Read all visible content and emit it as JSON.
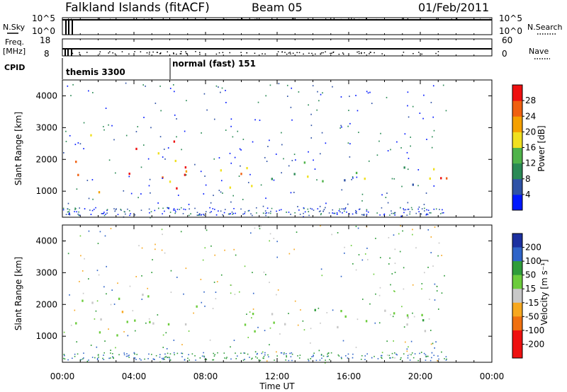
{
  "header": {
    "station": "Falkland Islands (fitACF)",
    "beam": "Beam 05",
    "date": "01/Feb/2011"
  },
  "noise_panel": {
    "left_label": "N.Sky",
    "right_label": "N.Search",
    "left_ticks": [
      "10^5",
      "10^0"
    ],
    "right_ticks": [
      "10^5",
      "10^0"
    ]
  },
  "freq_panel": {
    "left_label_1": "Freq.",
    "left_label_2": "[MHz]",
    "right_label": "Nave",
    "left_ticks": [
      "18",
      "8"
    ],
    "right_ticks": [
      "60",
      "0"
    ]
  },
  "cpid_panel": {
    "label": "CPID",
    "modes": [
      "themis 3300",
      "normal (fast) 151"
    ]
  },
  "power_panel": {
    "ylabel": "Slant Range [km]",
    "yticks": [
      "1000",
      "2000",
      "3000",
      "4000"
    ],
    "colorbar_label": "Power [dB]",
    "colorbar_ticks": [
      "4",
      "8",
      "12",
      "16",
      "20",
      "24",
      "28"
    ],
    "colors": [
      "#0018ff",
      "#2f52a6",
      "#2a8a55",
      "#4fb34a",
      "#f0e020",
      "#f5a000",
      "#f06010",
      "#ee1010"
    ]
  },
  "velocity_panel": {
    "ylabel": "Slant Range [km]",
    "yticks": [
      "1000",
      "2000",
      "3000",
      "4000"
    ],
    "colorbar_label": "Velocity [m s⁻¹]",
    "colorbar_ticks": [
      "200",
      "100",
      "50",
      "15",
      "-15",
      "-50",
      "-100",
      "-200"
    ],
    "colors": [
      "#1c30a0",
      "#2f64c8",
      "#2f9c3a",
      "#6ccc3c",
      "#c8c8c8",
      "#f7a820",
      "#f07010",
      "#ee1010"
    ]
  },
  "time_axis": {
    "label": "Time UT",
    "ticks": [
      "00:00",
      "04:00",
      "08:00",
      "12:00",
      "16:00",
      "20:00",
      "00:00"
    ]
  },
  "chart_data": [
    {
      "type": "heatmap",
      "title": "Falkland Islands (fitACF) Beam 05 01/Feb/2011",
      "quantity": "Power",
      "units": "dB",
      "x_range_hours": [
        0,
        24
      ],
      "y_range_km": [
        180,
        4500
      ],
      "color_range": [
        0,
        30
      ],
      "scatter_bands": [
        {
          "t_start": 0.0,
          "t_end": 7.0,
          "range_min": 800,
          "range_max": 2100,
          "power_typical": 26
        },
        {
          "t_start": 0.8,
          "t_end": 2.5,
          "range_min": 2500,
          "range_max": 3100,
          "power_typical": 18
        },
        {
          "t_start": 4.0,
          "t_end": 7.5,
          "range_min": 1800,
          "range_max": 2700,
          "power_typical": 24
        },
        {
          "t_start": 8.5,
          "t_end": 11.5,
          "range_min": 900,
          "range_max": 2300,
          "power_typical": 24
        },
        {
          "t_start": 11.5,
          "t_end": 21.5,
          "range_min": 1100,
          "range_max": 2200,
          "power_typical": 12
        },
        {
          "t_start": 19.5,
          "t_end": 21.5,
          "range_min": 1000,
          "range_max": 2000,
          "power_typical": 26
        }
      ]
    },
    {
      "type": "heatmap",
      "title": "Falkland Islands (fitACF) Beam 05 01/Feb/2011",
      "quantity": "Velocity",
      "units": "m s-1",
      "x_range_hours": [
        0,
        24
      ],
      "y_range_km": [
        180,
        4500
      ],
      "color_range": [
        -200,
        200
      ],
      "scatter_bands": [
        {
          "t_start": 0.0,
          "t_end": 7.0,
          "range_min": 800,
          "range_max": 2300,
          "velocity_typical": 0
        },
        {
          "t_start": 1.5,
          "t_end": 3.5,
          "range_min": 1500,
          "range_max": 2400,
          "velocity_typical": -40
        },
        {
          "t_start": 4.0,
          "t_end": 7.5,
          "range_min": 1900,
          "range_max": 2700,
          "velocity_typical": -30
        },
        {
          "t_start": 8.5,
          "t_end": 21.5,
          "range_min": 1000,
          "range_max": 2300,
          "velocity_typical": 0
        }
      ]
    }
  ]
}
